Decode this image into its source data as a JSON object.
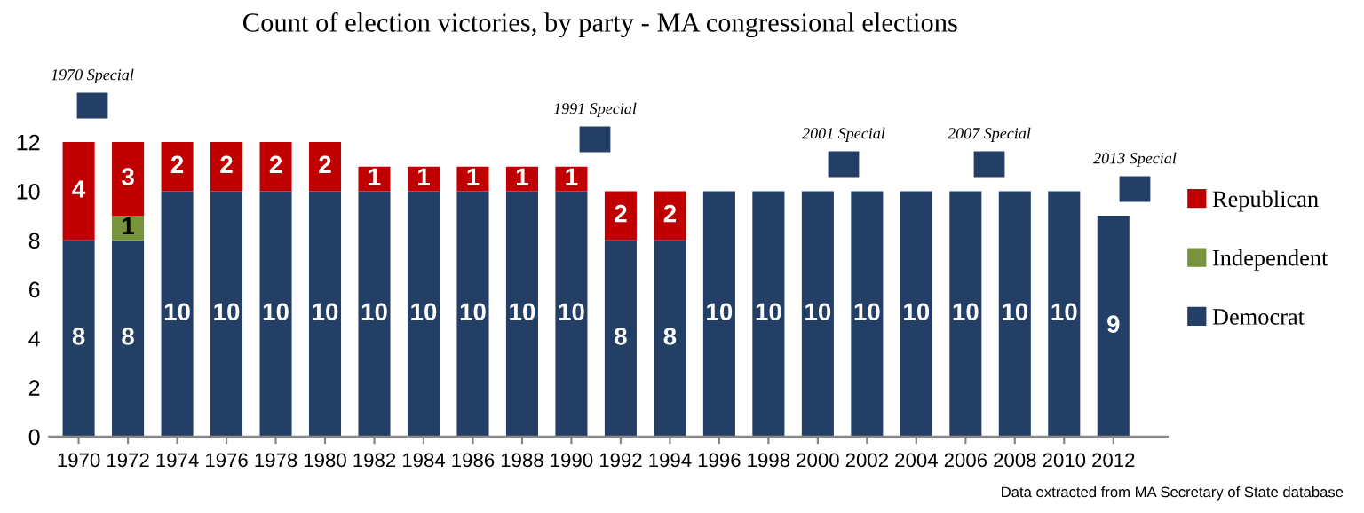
{
  "chart_data": {
    "type": "bar",
    "title": "Count of election victories, by party - MA congressional elections",
    "x": [
      1970,
      1972,
      1974,
      1976,
      1978,
      1980,
      1982,
      1984,
      1986,
      1988,
      1990,
      1992,
      1994,
      1996,
      1998,
      2000,
      2002,
      2004,
      2006,
      2008,
      2010,
      2012
    ],
    "stacked": true,
    "series": [
      {
        "name": "Democrat",
        "color": "#243f66",
        "values": [
          8,
          8,
          10,
          10,
          10,
          10,
          10,
          10,
          10,
          10,
          10,
          8,
          8,
          10,
          10,
          10,
          10,
          10,
          10,
          10,
          10,
          9
        ]
      },
      {
        "name": "Independent",
        "color": "#77933c",
        "values": [
          null,
          1,
          null,
          null,
          null,
          null,
          null,
          null,
          null,
          null,
          null,
          null,
          null,
          null,
          null,
          null,
          null,
          null,
          null,
          null,
          null,
          null
        ]
      },
      {
        "name": "Republican",
        "color": "#c00000",
        "values": [
          4,
          3,
          2,
          2,
          2,
          2,
          1,
          1,
          1,
          1,
          1,
          2,
          2,
          null,
          null,
          null,
          null,
          null,
          null,
          null,
          null,
          null
        ]
      }
    ],
    "data_labels": true,
    "xlim": [
      1968.8,
      2014.2
    ],
    "xticks": [
      1970,
      1972,
      1974,
      1976,
      1978,
      1980,
      1982,
      1984,
      1986,
      1988,
      1990,
      1992,
      1994,
      1996,
      1998,
      2000,
      2002,
      2004,
      2006,
      2008,
      2010,
      2012
    ],
    "ylim": [
      0,
      12
    ],
    "yticks": [
      0,
      2,
      4,
      6,
      8,
      10,
      12
    ],
    "legend": "right",
    "grid": false,
    "annotations": [
      "1970 Special",
      "1991 Special",
      "2001 Special",
      "2007 Special",
      "2013 Special",
      "Data extracted from MA Secretary of State database"
    ]
  }
}
